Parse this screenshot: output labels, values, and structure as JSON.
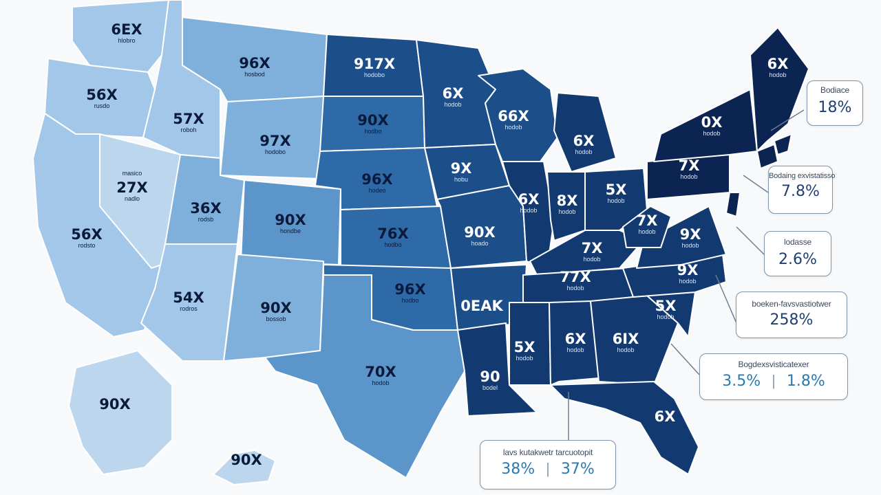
{
  "map": {
    "colors": {
      "level1": "#bcd6ee",
      "level2": "#a3c7e8",
      "level3": "#7fb0db",
      "level4": "#5c95c9",
      "level5": "#2f6aa8",
      "level6": "#1c4e8a",
      "level7": "#123a70",
      "level8": "#0c2452"
    },
    "states": [
      {
        "id": "wa",
        "value": "6EX",
        "sub": "hlobro"
      },
      {
        "id": "or",
        "value": "56X",
        "sub": "rusdo"
      },
      {
        "id": "ca",
        "value": "56X",
        "sub": "rodsto"
      },
      {
        "id": "nv",
        "value": "27X",
        "sub": "nadlo",
        "top_label": "masico"
      },
      {
        "id": "id",
        "value": "57X",
        "sub": "roboh"
      },
      {
        "id": "mt",
        "value": "96X",
        "sub": "hosbod"
      },
      {
        "id": "wy",
        "value": "97X",
        "sub": "hodobo"
      },
      {
        "id": "ut",
        "value": "36X",
        "sub": "rodsb"
      },
      {
        "id": "az",
        "value": "54X",
        "sub": "rodros"
      },
      {
        "id": "co",
        "value": "90X",
        "sub": "hondbe"
      },
      {
        "id": "nm",
        "value": "90X",
        "sub": "bossob"
      },
      {
        "id": "nd",
        "value": "917X",
        "sub": "hodobo"
      },
      {
        "id": "sd",
        "value": "90X",
        "sub": "hodbo"
      },
      {
        "id": "ne",
        "value": "96X",
        "sub": "hodeo"
      },
      {
        "id": "ks",
        "value": "76X",
        "sub": "hodbo"
      },
      {
        "id": "ok",
        "value": "96X",
        "sub": "hodbo"
      },
      {
        "id": "tx",
        "value": "70X",
        "sub": "hodob"
      },
      {
        "id": "mn",
        "value": "6X",
        "sub": "hodob"
      },
      {
        "id": "ia",
        "value": "9X",
        "sub": "hobu"
      },
      {
        "id": "mo",
        "value": "90X",
        "sub": "hoado"
      },
      {
        "id": "ar",
        "value": "0EAK",
        "sub": ""
      },
      {
        "id": "la",
        "value": "90",
        "sub": "bodel"
      },
      {
        "id": "wi",
        "value": "66X",
        "sub": "hodob"
      },
      {
        "id": "il",
        "value": "6X",
        "sub": "hodob"
      },
      {
        "id": "mi",
        "value": "6X",
        "sub": "hodob"
      },
      {
        "id": "in",
        "value": "8X",
        "sub": "hodob"
      },
      {
        "id": "oh",
        "value": "5X",
        "sub": "hodob"
      },
      {
        "id": "ky",
        "value": "7X",
        "sub": "hodob"
      },
      {
        "id": "tn",
        "value": "77X",
        "sub": "hodob"
      },
      {
        "id": "ms",
        "value": "5X",
        "sub": "hodob"
      },
      {
        "id": "al",
        "value": "6X",
        "sub": "hodob"
      },
      {
        "id": "ga",
        "value": "6IX",
        "sub": "hodob"
      },
      {
        "id": "fl",
        "value": "6X",
        "sub": ""
      },
      {
        "id": "sc",
        "value": "5X",
        "sub": "hodob"
      },
      {
        "id": "nc",
        "value": "9X",
        "sub": "hodob"
      },
      {
        "id": "va",
        "value": "9X",
        "sub": "hodob"
      },
      {
        "id": "wv",
        "value": "7X",
        "sub": "hodob"
      },
      {
        "id": "pa",
        "value": "7X",
        "sub": "hodob"
      },
      {
        "id": "ny",
        "value": "0X",
        "sub": "hodob"
      },
      {
        "id": "me",
        "value": "6X",
        "sub": "hodob"
      },
      {
        "id": "ak",
        "value": "90X",
        "sub": ""
      },
      {
        "id": "hi",
        "value": "90X",
        "sub": ""
      }
    ]
  },
  "callouts": {
    "c1": {
      "label": "Bodiace",
      "value": "18%"
    },
    "c2": {
      "label": "Bodaing exvistatisso",
      "value": "7.8%"
    },
    "c3": {
      "label": "lodasse",
      "value": "2.6%"
    },
    "c4": {
      "label": "boeken-favsvastiotwer",
      "value": "258%"
    },
    "c5": {
      "label": "Bogdexsvisticatexer",
      "value_a": "3.5%",
      "value_b": "1.8%"
    },
    "c6": {
      "label": "lavs kutakwetr tarcuotopit",
      "value_a": "38%",
      "value_b": "37%"
    }
  }
}
